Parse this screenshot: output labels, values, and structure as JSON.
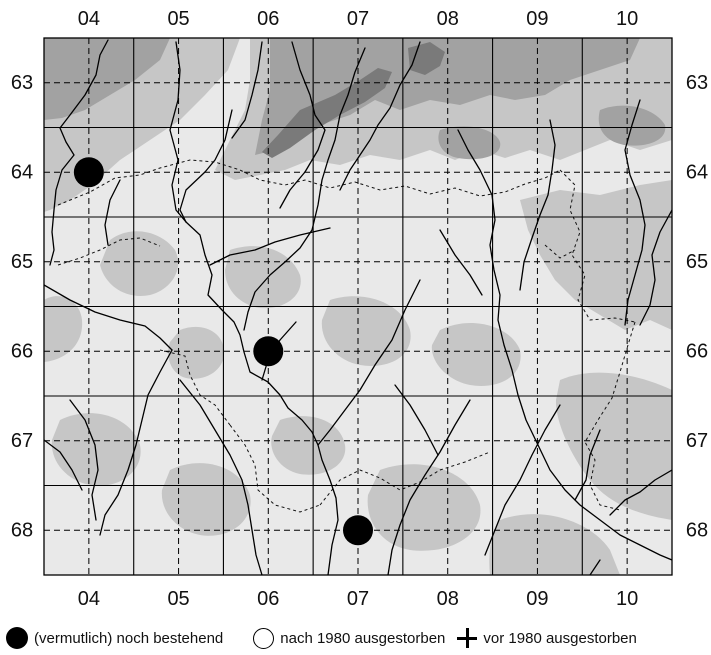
{
  "map": {
    "columns": [
      "04",
      "05",
      "06",
      "07",
      "08",
      "09",
      "10"
    ],
    "rows": [
      "63",
      "64",
      "65",
      "66",
      "67",
      "68"
    ],
    "colors": {
      "lowland": "#e9e9e9",
      "hills": "#c6c6c6",
      "mountains": "#a2a2a2",
      "peaks": "#7a7a7a",
      "rivers": "#000000",
      "grid": "#000000"
    },
    "occurrences": [
      {
        "status": "extant",
        "col": "04",
        "row": "64"
      },
      {
        "status": "extant",
        "col": "06",
        "row": "66"
      },
      {
        "status": "extant",
        "col": "07",
        "row": "68"
      }
    ]
  },
  "legend": {
    "extant_label": "(vermutlich) noch bestehend",
    "extinct_after_label": "nach 1980 ausgestorben",
    "extinct_before_label": "vor 1980 ausgestorben",
    "extant_icon": "filled-circle-icon",
    "extinct_after_icon": "open-circle-icon",
    "extinct_before_icon": "cross-icon"
  }
}
